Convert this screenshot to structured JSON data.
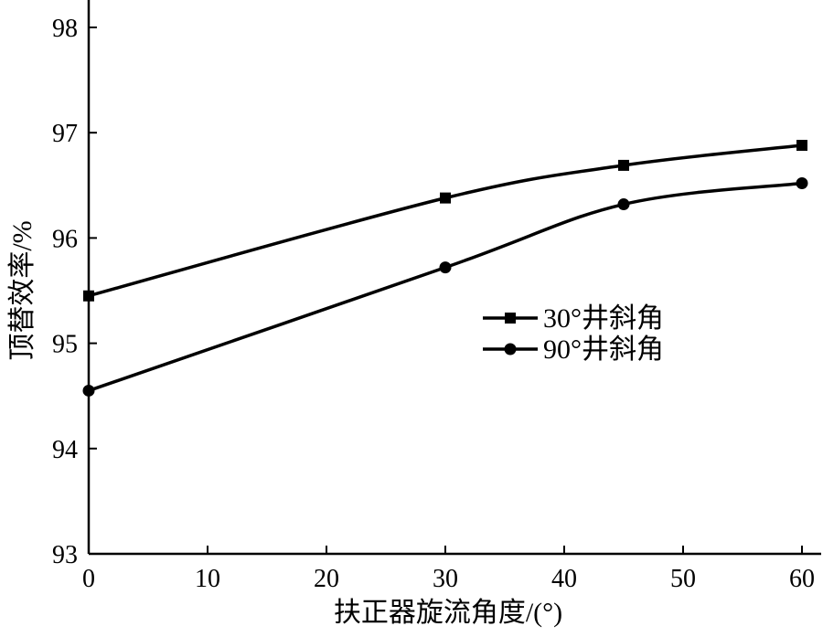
{
  "chart_data": {
    "type": "line",
    "title": "",
    "xlabel": "扶正器旋流角度/(°)",
    "ylabel": "顶替效率/%",
    "xlim": [
      0,
      60
    ],
    "ylim": [
      93,
      98.2
    ],
    "xticks": [
      0,
      10,
      20,
      30,
      40,
      50,
      60
    ],
    "yticks": [
      93,
      94,
      95,
      96,
      97,
      98
    ],
    "xtick_labels": [
      "0",
      "10",
      "20",
      "30",
      "40",
      "50",
      "60"
    ],
    "ytick_labels": [
      "93",
      "94",
      "95",
      "96",
      "97",
      "98"
    ],
    "grid": false,
    "legend_position": "center-right",
    "series": [
      {
        "name": "30°井斜角",
        "marker": "square",
        "color": "#000000",
        "x": [
          0,
          30,
          45,
          60
        ],
        "y": [
          95.45,
          96.38,
          96.69,
          96.88
        ]
      },
      {
        "name": "90°井斜角",
        "marker": "circle",
        "color": "#000000",
        "x": [
          0,
          30,
          45,
          60
        ],
        "y": [
          94.55,
          95.72,
          96.32,
          96.52
        ]
      }
    ]
  }
}
